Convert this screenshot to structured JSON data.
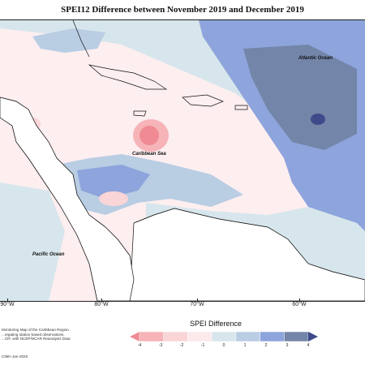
{
  "title": "SPEI12 Difference between November 2019 and December 2019",
  "map": {
    "labels": {
      "atlantic": "Atlantic Ocean",
      "caribbean": "Caribbean Sea",
      "pacific": "Pacific Ocean"
    },
    "longitudes": [
      "90°W",
      "80°W",
      "70°W",
      "60°W"
    ]
  },
  "legend": {
    "title": "SPEI Difference",
    "ticks": [
      "-4",
      "-3",
      "-2",
      "-1",
      "0",
      "1",
      "2",
      "3",
      "4"
    ],
    "colors": [
      "#f08b93",
      "#f6b3b8",
      "#f9d5d8",
      "#fce9eb",
      "#d7e6ec",
      "#b9cde3",
      "#8da4dc",
      "#7385a8",
      "#3e4a8a"
    ]
  },
  "credits": {
    "line1": "Monitoring Map of the Caribbean Region.",
    "line2": "...regating station based observations,",
    "line3": "...CIF, with NCEP/NCAR Reanalysis Data"
  },
  "footer": "CIMH Jan-2020"
}
